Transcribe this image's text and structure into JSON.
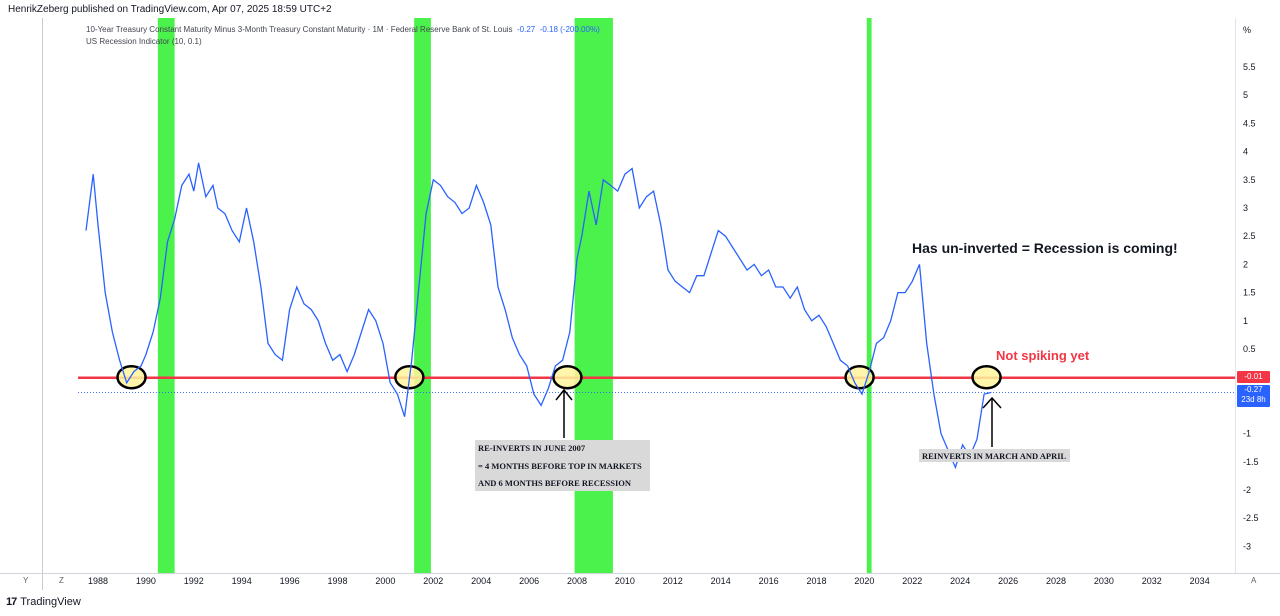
{
  "publisher": "HenrikZeberg published on TradingView.com, Apr 07, 2025 18:59 UTC+2",
  "legend": {
    "series_title": "10-Year Treasury Constant Maturity Minus 3-Month Treasury Constant Maturity · 1M · Federal Reserve Bank of St. Louis",
    "value1": "-0.27",
    "value2": "-0.18",
    "value3": "(-200.00%)",
    "indicator": "US Recession Indicator (10, 0.1)"
  },
  "axis_unit": "%",
  "y_tick_labels": [
    "5.5",
    "5",
    "4.5",
    "4",
    "3.5",
    "3",
    "2.5",
    "2",
    "1.5",
    "1",
    "0.5",
    "-1",
    "-1.5",
    "-2",
    "-2.5",
    "-3"
  ],
  "x_tick_labels": [
    "1988",
    "1990",
    "1992",
    "1994",
    "1996",
    "1998",
    "2000",
    "2002",
    "2004",
    "2006",
    "2008",
    "2010",
    "2012",
    "2014",
    "2016",
    "2018",
    "2020",
    "2022",
    "2024",
    "2026",
    "2028",
    "2030",
    "2032",
    "2034"
  ],
  "bottom_buttons": {
    "y": "Y",
    "z": "Z",
    "a": "A"
  },
  "annotations": {
    "headline": "Has un-inverted = Recession is coming!",
    "not_spiking": "Not spiking yet",
    "june2007_note": [
      "RE-INVERTS IN JUNE 2007",
      "= 4 MONTHS BEFORE TOP IN MARKETS",
      "AND 6 MONTHS BEFORE RECESSION"
    ],
    "reinverts_note": "REINVERTS IN MARCH AND APRIL"
  },
  "price_tags": {
    "red": "-0.01",
    "blue_value": "-0.27",
    "blue_time": "23d 8h"
  },
  "logo_text": "TradingView",
  "colors": {
    "series": "#2962ff",
    "recession": "#4cf24c",
    "zero_line": "#f23645",
    "highlight": "#fff59d"
  },
  "chart_data": {
    "type": "line",
    "x_unit": "year",
    "ylim": [
      -3.5,
      6.0
    ],
    "xlim": [
      1987.4,
      2035.3
    ],
    "recession_periods": [
      [
        1990.5,
        1991.2
      ],
      [
        2001.2,
        2001.9
      ],
      [
        2007.9,
        2009.5
      ],
      [
        2020.1,
        2020.3
      ]
    ],
    "zero_line_value": -0.01,
    "last_value": -0.27,
    "highlight_circles_x": [
      1989.4,
      2001.0,
      2007.6,
      2019.8,
      2025.1
    ],
    "series": [
      {
        "x": [
          1987.5,
          1987.8,
          1988.0,
          1988.3,
          1988.6,
          1988.9,
          1989.2,
          1989.5,
          1989.8,
          1990.0,
          1990.3,
          1990.6,
          1990.9,
          1991.2,
          1991.5,
          1991.8,
          1992.0,
          1992.2,
          1992.5,
          1992.8,
          1993.0,
          1993.3,
          1993.6,
          1993.9,
          1994.2,
          1994.5,
          1994.8,
          1995.1,
          1995.4,
          1995.7,
          1996.0,
          1996.3,
          1996.6,
          1996.9,
          1997.2,
          1997.5,
          1997.8,
          1998.1,
          1998.4,
          1998.7,
          1999.0,
          1999.3,
          1999.6,
          1999.9,
          2000.2,
          2000.5,
          2000.8,
          2001.1,
          2001.4,
          2001.7,
          2002.0,
          2002.3,
          2002.6,
          2002.9,
          2003.2,
          2003.5,
          2003.8,
          2004.1,
          2004.4,
          2004.7,
          2005.0,
          2005.3,
          2005.6,
          2005.9,
          2006.2,
          2006.5,
          2006.8,
          2007.1,
          2007.4,
          2007.7,
          2008.0,
          2008.2,
          2008.5,
          2008.8,
          2009.1,
          2009.4,
          2009.7,
          2010.0,
          2010.3,
          2010.6,
          2010.9,
          2011.2,
          2011.5,
          2011.8,
          2012.1,
          2012.4,
          2012.7,
          2013.0,
          2013.3,
          2013.6,
          2013.9,
          2014.2,
          2014.5,
          2014.8,
          2015.1,
          2015.4,
          2015.7,
          2016.0,
          2016.3,
          2016.6,
          2016.9,
          2017.2,
          2017.5,
          2017.8,
          2018.1,
          2018.4,
          2018.7,
          2019.0,
          2019.3,
          2019.6,
          2019.9,
          2020.2,
          2020.5,
          2020.8,
          2021.1,
          2021.4,
          2021.7,
          2022.0,
          2022.3,
          2022.6,
          2022.9,
          2023.2,
          2023.5,
          2023.8,
          2024.1,
          2024.4,
          2024.7,
          2025.0,
          2025.3
        ],
        "y": [
          2.6,
          3.6,
          2.7,
          1.5,
          0.8,
          0.3,
          -0.1,
          0.1,
          0.2,
          0.4,
          0.8,
          1.4,
          2.4,
          2.8,
          3.4,
          3.6,
          3.3,
          3.8,
          3.2,
          3.4,
          3.0,
          2.9,
          2.6,
          2.4,
          3.0,
          2.4,
          1.6,
          0.6,
          0.4,
          0.3,
          1.2,
          1.6,
          1.3,
          1.2,
          1.0,
          0.6,
          0.3,
          0.4,
          0.1,
          0.4,
          0.8,
          1.2,
          1.0,
          0.6,
          -0.1,
          -0.3,
          -0.7,
          0.3,
          1.6,
          2.9,
          3.5,
          3.4,
          3.2,
          3.1,
          2.9,
          3.0,
          3.4,
          3.1,
          2.7,
          1.6,
          1.2,
          0.7,
          0.4,
          0.2,
          -0.3,
          -0.5,
          -0.2,
          0.2,
          0.3,
          0.8,
          2.1,
          2.5,
          3.3,
          2.7,
          3.5,
          3.4,
          3.3,
          3.6,
          3.7,
          3.0,
          3.2,
          3.3,
          2.7,
          1.9,
          1.7,
          1.6,
          1.5,
          1.8,
          1.8,
          2.2,
          2.6,
          2.5,
          2.3,
          2.1,
          1.9,
          2.0,
          1.8,
          1.9,
          1.6,
          1.6,
          1.4,
          1.6,
          1.2,
          1.0,
          1.1,
          0.9,
          0.6,
          0.3,
          0.2,
          -0.1,
          -0.3,
          0.1,
          0.6,
          0.7,
          1.0,
          1.5,
          1.5,
          1.7,
          2.0,
          0.6,
          -0.3,
          -1.0,
          -1.3,
          -1.6,
          -1.2,
          -1.4,
          -1.1,
          -0.3,
          -0.27
        ]
      }
    ]
  }
}
